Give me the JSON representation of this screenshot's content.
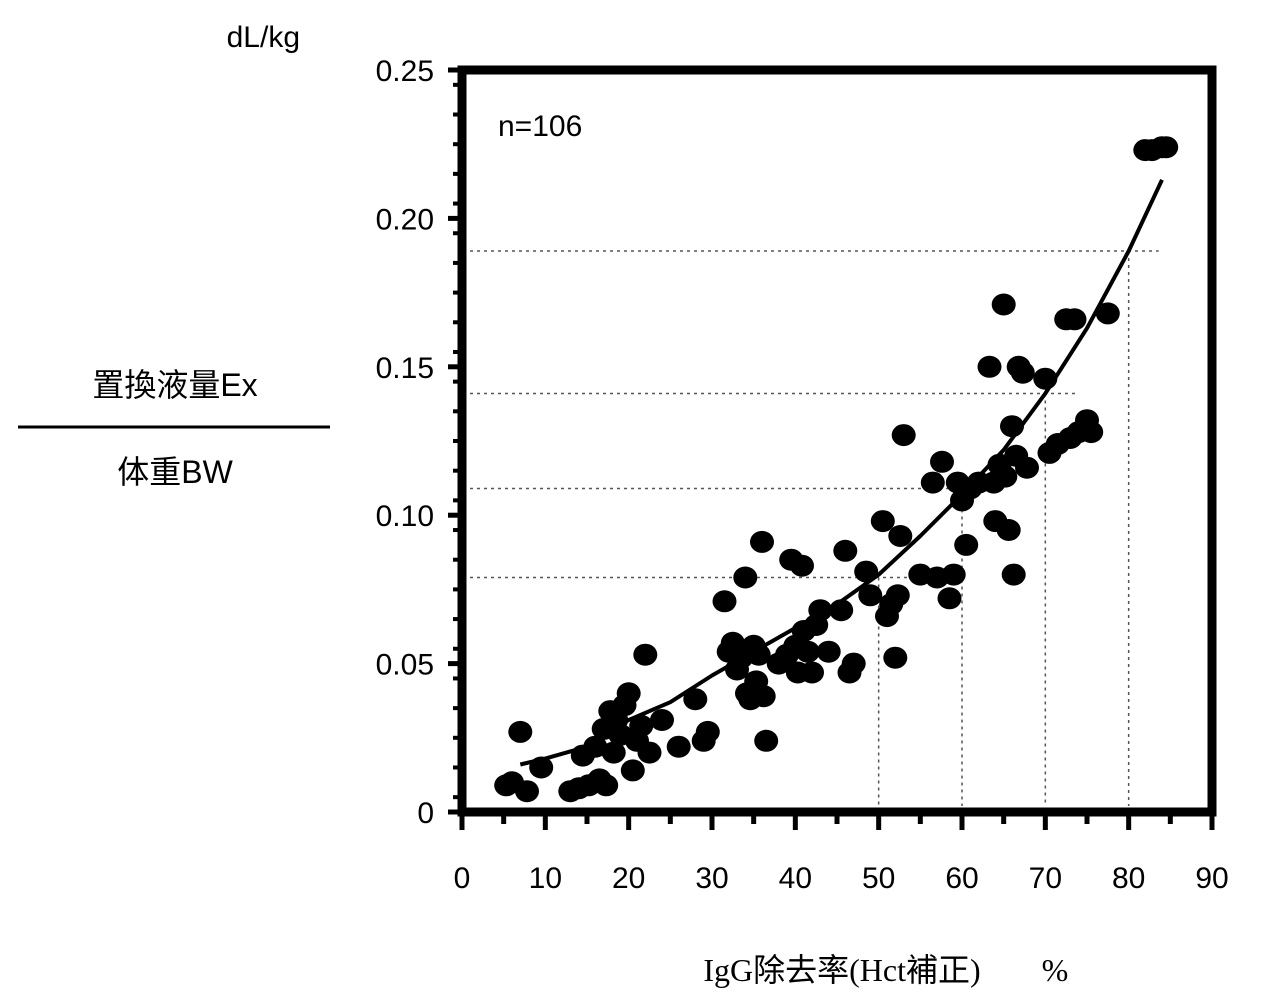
{
  "chart_data": {
    "type": "scatter",
    "title": "",
    "unit_label": "dL/kg",
    "ylabel_numerator": "置換液量Ex",
    "ylabel_denominator": "体重BW",
    "xlabel": "IgG除去率(Hct補正)",
    "xlabel_unit": "%",
    "annotation": "n=106",
    "xlim": [
      0,
      90
    ],
    "ylim": [
      0,
      0.25
    ],
    "x_ticks": [
      0,
      10,
      20,
      30,
      40,
      50,
      60,
      70,
      80,
      90
    ],
    "x_tick_labels": [
      "0",
      "10",
      "20",
      "30",
      "40",
      "50",
      "60",
      "70",
      "80",
      "90"
    ],
    "y_ticks": [
      0,
      0.05,
      0.1,
      0.15,
      0.2,
      0.25
    ],
    "y_tick_labels": [
      "0",
      "0.05",
      "0.10",
      "0.15",
      "0.20",
      "0.25"
    ],
    "grid": false,
    "reference_lines": [
      {
        "x": 50,
        "y": 0.079
      },
      {
        "x": 60,
        "y": 0.109
      },
      {
        "x": 70,
        "y": 0.141
      },
      {
        "x": 80,
        "y": 0.189
      }
    ],
    "fit_curve": {
      "x": [
        7,
        10,
        15,
        20,
        25,
        30,
        35,
        40,
        45,
        50,
        55,
        60,
        65,
        70,
        75,
        80,
        84
      ],
      "y": [
        0.016,
        0.018,
        0.022,
        0.031,
        0.037,
        0.046,
        0.054,
        0.062,
        0.07,
        0.08,
        0.093,
        0.107,
        0.122,
        0.141,
        0.163,
        0.189,
        0.213
      ]
    },
    "points": [
      {
        "x": 5.3,
        "y": 0.009
      },
      {
        "x": 6.0,
        "y": 0.01
      },
      {
        "x": 7.0,
        "y": 0.027
      },
      {
        "x": 7.8,
        "y": 0.007
      },
      {
        "x": 9.5,
        "y": 0.015
      },
      {
        "x": 13.0,
        "y": 0.007
      },
      {
        "x": 14.0,
        "y": 0.008
      },
      {
        "x": 14.5,
        "y": 0.019
      },
      {
        "x": 15.2,
        "y": 0.009
      },
      {
        "x": 16.0,
        "y": 0.022
      },
      {
        "x": 16.5,
        "y": 0.011
      },
      {
        "x": 17.0,
        "y": 0.028
      },
      {
        "x": 17.3,
        "y": 0.009
      },
      {
        "x": 17.8,
        "y": 0.034
      },
      {
        "x": 18.2,
        "y": 0.02
      },
      {
        "x": 18.5,
        "y": 0.031
      },
      {
        "x": 19.0,
        "y": 0.026
      },
      {
        "x": 19.5,
        "y": 0.036
      },
      {
        "x": 20.0,
        "y": 0.04
      },
      {
        "x": 20.5,
        "y": 0.014
      },
      {
        "x": 21.0,
        "y": 0.024
      },
      {
        "x": 21.5,
        "y": 0.029
      },
      {
        "x": 22.0,
        "y": 0.053
      },
      {
        "x": 22.5,
        "y": 0.02
      },
      {
        "x": 24.0,
        "y": 0.031
      },
      {
        "x": 26.0,
        "y": 0.022
      },
      {
        "x": 28.0,
        "y": 0.038
      },
      {
        "x": 29.0,
        "y": 0.024
      },
      {
        "x": 29.5,
        "y": 0.027
      },
      {
        "x": 31.5,
        "y": 0.071
      },
      {
        "x": 32.0,
        "y": 0.054
      },
      {
        "x": 32.5,
        "y": 0.057
      },
      {
        "x": 33.0,
        "y": 0.048
      },
      {
        "x": 33.5,
        "y": 0.052
      },
      {
        "x": 34.0,
        "y": 0.079
      },
      {
        "x": 34.2,
        "y": 0.04
      },
      {
        "x": 34.6,
        "y": 0.038
      },
      {
        "x": 35.0,
        "y": 0.056
      },
      {
        "x": 35.3,
        "y": 0.044
      },
      {
        "x": 35.6,
        "y": 0.053
      },
      {
        "x": 36.0,
        "y": 0.091
      },
      {
        "x": 36.2,
        "y": 0.039
      },
      {
        "x": 36.5,
        "y": 0.024
      },
      {
        "x": 39.0,
        "y": 0.053
      },
      {
        "x": 39.5,
        "y": 0.085
      },
      {
        "x": 40.0,
        "y": 0.056
      },
      {
        "x": 40.3,
        "y": 0.047
      },
      {
        "x": 40.8,
        "y": 0.083
      },
      {
        "x": 41.0,
        "y": 0.061
      },
      {
        "x": 41.5,
        "y": 0.054
      },
      {
        "x": 42.0,
        "y": 0.047
      },
      {
        "x": 42.5,
        "y": 0.063
      },
      {
        "x": 43.0,
        "y": 0.068
      },
      {
        "x": 44.0,
        "y": 0.054
      },
      {
        "x": 45.5,
        "y": 0.068
      },
      {
        "x": 46.0,
        "y": 0.088
      },
      {
        "x": 46.5,
        "y": 0.047
      },
      {
        "x": 47.0,
        "y": 0.05
      },
      {
        "x": 48.5,
        "y": 0.081
      },
      {
        "x": 49.0,
        "y": 0.073
      },
      {
        "x": 50.5,
        "y": 0.098
      },
      {
        "x": 51.0,
        "y": 0.066
      },
      {
        "x": 51.5,
        "y": 0.07
      },
      {
        "x": 52.0,
        "y": 0.052
      },
      {
        "x": 52.3,
        "y": 0.073
      },
      {
        "x": 52.6,
        "y": 0.093
      },
      {
        "x": 53.0,
        "y": 0.127
      },
      {
        "x": 55.0,
        "y": 0.08
      },
      {
        "x": 56.5,
        "y": 0.111
      },
      {
        "x": 57.0,
        "y": 0.079
      },
      {
        "x": 57.6,
        "y": 0.118
      },
      {
        "x": 58.5,
        "y": 0.072
      },
      {
        "x": 59.0,
        "y": 0.08
      },
      {
        "x": 59.5,
        "y": 0.111
      },
      {
        "x": 60.0,
        "y": 0.105
      },
      {
        "x": 60.5,
        "y": 0.09
      },
      {
        "x": 61.0,
        "y": 0.109
      },
      {
        "x": 63.3,
        "y": 0.15
      },
      {
        "x": 63.8,
        "y": 0.111
      },
      {
        "x": 64.0,
        "y": 0.098
      },
      {
        "x": 64.5,
        "y": 0.117
      },
      {
        "x": 65.0,
        "y": 0.171
      },
      {
        "x": 65.2,
        "y": 0.113
      },
      {
        "x": 65.6,
        "y": 0.095
      },
      {
        "x": 66.0,
        "y": 0.13
      },
      {
        "x": 66.2,
        "y": 0.08
      },
      {
        "x": 66.5,
        "y": 0.12
      },
      {
        "x": 66.8,
        "y": 0.15
      },
      {
        "x": 67.3,
        "y": 0.148
      },
      {
        "x": 67.8,
        "y": 0.116
      },
      {
        "x": 70.0,
        "y": 0.146
      },
      {
        "x": 70.5,
        "y": 0.121
      },
      {
        "x": 71.5,
        "y": 0.124
      },
      {
        "x": 72.5,
        "y": 0.166
      },
      {
        "x": 73.0,
        "y": 0.126
      },
      {
        "x": 73.5,
        "y": 0.166
      },
      {
        "x": 74.0,
        "y": 0.128
      },
      {
        "x": 75.0,
        "y": 0.132
      },
      {
        "x": 75.5,
        "y": 0.128
      },
      {
        "x": 77.5,
        "y": 0.168
      },
      {
        "x": 82.0,
        "y": 0.223
      },
      {
        "x": 82.8,
        "y": 0.223
      },
      {
        "x": 84.5,
        "y": 0.224
      },
      {
        "x": 84.0,
        "y": 0.224
      },
      {
        "x": 62.0,
        "y": 0.111
      },
      {
        "x": 38.0,
        "y": 0.05
      }
    ]
  }
}
